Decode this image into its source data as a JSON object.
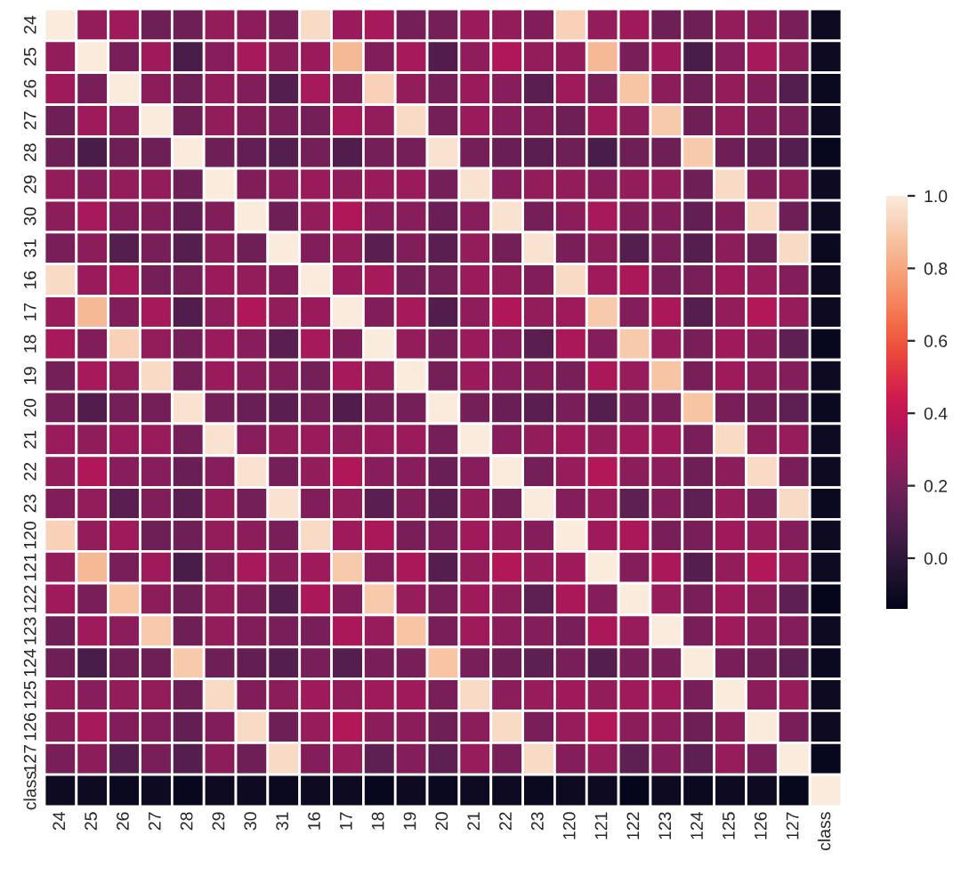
{
  "chart_data": {
    "type": "heatmap",
    "categories": [
      "24",
      "25",
      "26",
      "27",
      "28",
      "29",
      "30",
      "31",
      "16",
      "17",
      "18",
      "19",
      "20",
      "21",
      "22",
      "23",
      "120",
      "121",
      "122",
      "123",
      "124",
      "125",
      "126",
      "127",
      "class"
    ],
    "y_categories": [
      "24",
      "25",
      "26",
      "27",
      "28",
      "29",
      "30",
      "31",
      "16",
      "17",
      "18",
      "19",
      "20",
      "21",
      "22",
      "23",
      "120",
      "121",
      "122",
      "123",
      "124",
      "125",
      "126",
      "127",
      "class"
    ],
    "cells": [
      [
        1,
        0.28,
        0.31,
        0.18,
        0.18,
        0.28,
        0.26,
        0.21,
        0.95,
        0.3,
        0.33,
        0.2,
        0.2,
        0.3,
        0.28,
        0.23,
        0.92,
        0.28,
        0.31,
        0.18,
        0.18,
        0.28,
        0.26,
        0.21,
        -0.1
      ],
      [
        0.28,
        1,
        0.21,
        0.31,
        0.08,
        0.25,
        0.33,
        0.26,
        0.3,
        0.85,
        0.23,
        0.33,
        0.1,
        0.27,
        0.35,
        0.28,
        0.28,
        0.85,
        0.21,
        0.31,
        0.08,
        0.25,
        0.33,
        0.26,
        -0.1
      ],
      [
        0.31,
        0.21,
        1,
        0.26,
        0.18,
        0.28,
        0.23,
        0.11,
        0.33,
        0.23,
        0.92,
        0.28,
        0.2,
        0.3,
        0.25,
        0.13,
        0.31,
        0.21,
        0.88,
        0.26,
        0.18,
        0.28,
        0.23,
        0.11,
        -0.11
      ],
      [
        0.18,
        0.31,
        0.26,
        1,
        0.18,
        0.28,
        0.23,
        0.21,
        0.2,
        0.33,
        0.28,
        0.95,
        0.2,
        0.3,
        0.25,
        0.23,
        0.18,
        0.31,
        0.26,
        0.9,
        0.18,
        0.28,
        0.23,
        0.21,
        -0.1
      ],
      [
        0.18,
        0.08,
        0.18,
        0.18,
        1,
        0.18,
        0.15,
        0.11,
        0.2,
        0.1,
        0.2,
        0.2,
        0.97,
        0.2,
        0.17,
        0.13,
        0.18,
        0.08,
        0.18,
        0.18,
        0.9,
        0.18,
        0.15,
        0.11,
        -0.12
      ],
      [
        0.28,
        0.25,
        0.28,
        0.28,
        0.18,
        1,
        0.23,
        0.26,
        0.3,
        0.27,
        0.3,
        0.3,
        0.2,
        0.97,
        0.25,
        0.28,
        0.28,
        0.25,
        0.28,
        0.28,
        0.18,
        0.95,
        0.23,
        0.26,
        -0.1
      ],
      [
        0.26,
        0.33,
        0.23,
        0.23,
        0.15,
        0.23,
        1,
        0.18,
        0.28,
        0.35,
        0.25,
        0.25,
        0.17,
        0.25,
        0.97,
        0.2,
        0.26,
        0.33,
        0.23,
        0.23,
        0.15,
        0.23,
        0.95,
        0.18,
        -0.1
      ],
      [
        0.21,
        0.26,
        0.11,
        0.21,
        0.11,
        0.26,
        0.18,
        1,
        0.23,
        0.28,
        0.13,
        0.23,
        0.13,
        0.28,
        0.2,
        0.97,
        0.21,
        0.26,
        0.11,
        0.21,
        0.11,
        0.26,
        0.18,
        0.95,
        -0.11
      ],
      [
        0.95,
        0.3,
        0.33,
        0.2,
        0.2,
        0.3,
        0.28,
        0.23,
        1,
        0.3,
        0.33,
        0.2,
        0.2,
        0.3,
        0.28,
        0.23,
        0.95,
        0.31,
        0.34,
        0.21,
        0.21,
        0.31,
        0.29,
        0.24,
        -0.1
      ],
      [
        0.3,
        0.85,
        0.23,
        0.33,
        0.1,
        0.27,
        0.35,
        0.28,
        0.3,
        1,
        0.23,
        0.33,
        0.1,
        0.27,
        0.35,
        0.28,
        0.31,
        0.9,
        0.24,
        0.34,
        0.11,
        0.28,
        0.36,
        0.29,
        -0.1
      ],
      [
        0.33,
        0.23,
        0.92,
        0.28,
        0.2,
        0.3,
        0.25,
        0.13,
        0.33,
        0.23,
        1,
        0.28,
        0.2,
        0.3,
        0.25,
        0.13,
        0.34,
        0.24,
        0.9,
        0.29,
        0.21,
        0.31,
        0.26,
        0.14,
        -0.12
      ],
      [
        0.2,
        0.33,
        0.28,
        0.95,
        0.2,
        0.3,
        0.25,
        0.23,
        0.2,
        0.33,
        0.28,
        1,
        0.2,
        0.3,
        0.25,
        0.23,
        0.21,
        0.34,
        0.29,
        0.88,
        0.21,
        0.31,
        0.26,
        0.24,
        -0.1
      ],
      [
        0.2,
        0.1,
        0.2,
        0.2,
        0.97,
        0.2,
        0.17,
        0.13,
        0.2,
        0.1,
        0.2,
        0.2,
        1,
        0.2,
        0.17,
        0.13,
        0.21,
        0.11,
        0.21,
        0.21,
        0.88,
        0.21,
        0.18,
        0.14,
        -0.11
      ],
      [
        0.3,
        0.27,
        0.3,
        0.3,
        0.2,
        0.97,
        0.25,
        0.28,
        0.3,
        0.27,
        0.3,
        0.3,
        0.2,
        1,
        0.25,
        0.28,
        0.31,
        0.28,
        0.31,
        0.31,
        0.21,
        0.95,
        0.26,
        0.29,
        -0.1
      ],
      [
        0.28,
        0.35,
        0.25,
        0.25,
        0.17,
        0.25,
        0.97,
        0.2,
        0.28,
        0.35,
        0.25,
        0.25,
        0.17,
        0.25,
        1,
        0.2,
        0.29,
        0.36,
        0.26,
        0.26,
        0.18,
        0.26,
        0.95,
        0.21,
        -0.1
      ],
      [
        0.23,
        0.28,
        0.13,
        0.23,
        0.13,
        0.28,
        0.2,
        0.97,
        0.23,
        0.28,
        0.13,
        0.23,
        0.13,
        0.28,
        0.2,
        1,
        0.24,
        0.29,
        0.14,
        0.24,
        0.14,
        0.29,
        0.21,
        0.95,
        -0.11
      ],
      [
        0.92,
        0.28,
        0.31,
        0.18,
        0.18,
        0.28,
        0.26,
        0.21,
        0.95,
        0.31,
        0.34,
        0.21,
        0.21,
        0.31,
        0.29,
        0.24,
        1,
        0.31,
        0.34,
        0.21,
        0.21,
        0.31,
        0.29,
        0.24,
        -0.1
      ],
      [
        0.28,
        0.85,
        0.21,
        0.31,
        0.08,
        0.25,
        0.33,
        0.26,
        0.31,
        0.9,
        0.24,
        0.34,
        0.11,
        0.28,
        0.36,
        0.29,
        0.31,
        1,
        0.24,
        0.34,
        0.11,
        0.28,
        0.36,
        0.29,
        -0.1
      ],
      [
        0.31,
        0.21,
        0.88,
        0.26,
        0.18,
        0.28,
        0.23,
        0.11,
        0.34,
        0.24,
        0.9,
        0.29,
        0.21,
        0.31,
        0.26,
        0.14,
        0.34,
        0.24,
        1,
        0.29,
        0.21,
        0.31,
        0.26,
        0.14,
        -0.13
      ],
      [
        0.18,
        0.31,
        0.26,
        0.9,
        0.18,
        0.28,
        0.23,
        0.21,
        0.21,
        0.34,
        0.29,
        0.88,
        0.21,
        0.31,
        0.26,
        0.24,
        0.21,
        0.34,
        0.29,
        1,
        0.21,
        0.31,
        0.26,
        0.24,
        -0.1
      ],
      [
        0.18,
        0.08,
        0.18,
        0.18,
        0.9,
        0.18,
        0.15,
        0.11,
        0.21,
        0.11,
        0.21,
        0.21,
        0.88,
        0.21,
        0.18,
        0.14,
        0.21,
        0.11,
        0.21,
        0.21,
        1,
        0.21,
        0.18,
        0.14,
        -0.11
      ],
      [
        0.28,
        0.25,
        0.28,
        0.28,
        0.18,
        0.95,
        0.23,
        0.26,
        0.31,
        0.28,
        0.31,
        0.31,
        0.21,
        0.95,
        0.26,
        0.29,
        0.31,
        0.28,
        0.31,
        0.31,
        0.21,
        1,
        0.26,
        0.29,
        -0.1
      ],
      [
        0.26,
        0.33,
        0.23,
        0.23,
        0.15,
        0.23,
        0.95,
        0.18,
        0.29,
        0.36,
        0.26,
        0.26,
        0.18,
        0.26,
        0.95,
        0.21,
        0.29,
        0.36,
        0.26,
        0.26,
        0.18,
        0.26,
        1,
        0.21,
        -0.1
      ],
      [
        0.21,
        0.26,
        0.11,
        0.21,
        0.11,
        0.26,
        0.18,
        0.95,
        0.24,
        0.29,
        0.14,
        0.24,
        0.14,
        0.29,
        0.21,
        0.95,
        0.24,
        0.29,
        0.14,
        0.24,
        0.14,
        0.29,
        0.21,
        1,
        -0.12
      ],
      [
        -0.1,
        -0.1,
        -0.11,
        -0.1,
        -0.12,
        -0.1,
        -0.1,
        -0.11,
        -0.1,
        -0.1,
        -0.12,
        -0.1,
        -0.11,
        -0.1,
        -0.1,
        -0.11,
        -0.1,
        -0.1,
        -0.13,
        -0.1,
        -0.11,
        -0.1,
        -0.1,
        -0.12,
        1
      ]
    ],
    "clim": [
      -0.14,
      1.0
    ],
    "cticks": [
      {
        "value": 0.0,
        "label": "0.0"
      },
      {
        "value": 0.2,
        "label": "0.2"
      },
      {
        "value": 0.4,
        "label": "0.4"
      },
      {
        "value": 0.6,
        "label": "0.6"
      },
      {
        "value": 0.8,
        "label": "0.8"
      },
      {
        "value": 1.0,
        "label": "1.0"
      }
    ]
  }
}
